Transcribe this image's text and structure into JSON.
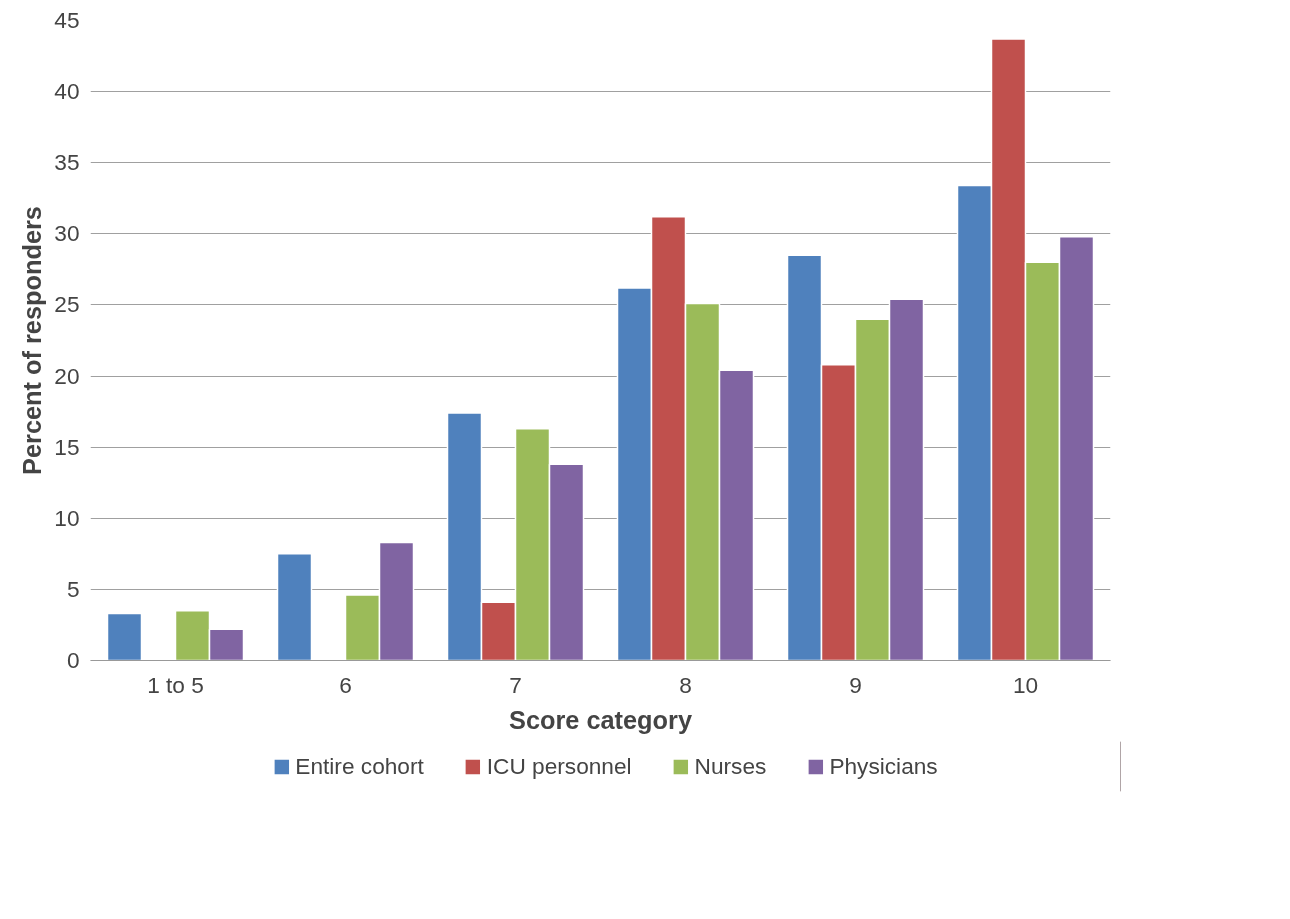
{
  "chart_data": {
    "type": "bar",
    "xlabel": "Score category",
    "ylabel": "Percent of responders",
    "categories": [
      "1 to 5",
      "6",
      "7",
      "8",
      "9",
      "10"
    ],
    "series": [
      {
        "name": "Entire cohort",
        "color": "#4f81bd",
        "values": [
          3.3,
          7.5,
          17.4,
          26.2,
          28.5,
          33.4
        ]
      },
      {
        "name": "ICU personnel",
        "color": "#c0504d",
        "values": [
          null,
          null,
          4.1,
          31.2,
          20.8,
          43.7
        ]
      },
      {
        "name": "Nurses",
        "color": "#9bbb59",
        "values": [
          3.5,
          4.6,
          16.3,
          25.1,
          24.0,
          28.0
        ]
      },
      {
        "name": "Physicians",
        "color": "#8064a2",
        "values": [
          2.2,
          8.3,
          13.8,
          20.4,
          25.4,
          29.8
        ]
      }
    ],
    "ylim": [
      0,
      45
    ],
    "yticks": [
      0,
      5,
      10,
      15,
      20,
      25,
      30,
      35,
      40,
      45
    ],
    "grid": "y",
    "legend": "bottom"
  }
}
